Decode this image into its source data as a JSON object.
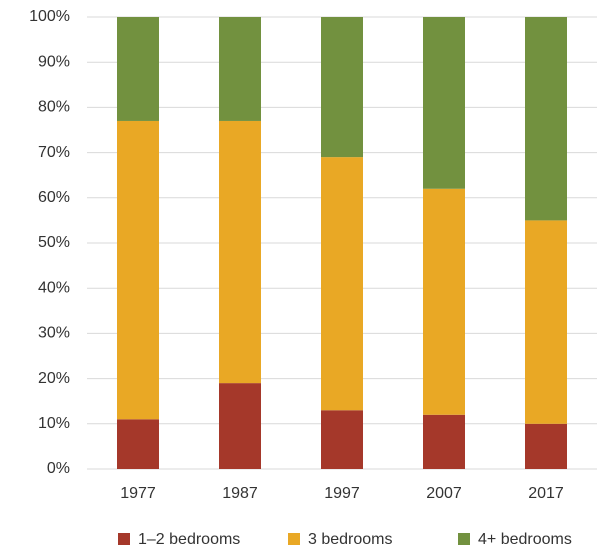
{
  "chart_data": {
    "type": "stacked_bar",
    "categories": [
      "1977",
      "1987",
      "1997",
      "2007",
      "2017"
    ],
    "series": [
      {
        "name": "1–2 bedrooms",
        "color": "#a5382a",
        "values": [
          11,
          19,
          13,
          12,
          10
        ]
      },
      {
        "name": "3 bedrooms",
        "color": "#e9a825",
        "values": [
          66,
          58,
          56,
          50,
          45
        ]
      },
      {
        "name": "4+ bedrooms",
        "color": "#72913f",
        "values": [
          23,
          23,
          31,
          38,
          45
        ]
      }
    ],
    "ylim": [
      0,
      100
    ],
    "yticks": [
      {
        "value": 0,
        "label": "0%"
      },
      {
        "value": 10,
        "label": "10%"
      },
      {
        "value": 20,
        "label": "20%"
      },
      {
        "value": 30,
        "label": "30%"
      },
      {
        "value": 40,
        "label": "40%"
      },
      {
        "value": 50,
        "label": "50%"
      },
      {
        "value": 60,
        "label": "60%"
      },
      {
        "value": 70,
        "label": "70%"
      },
      {
        "value": 80,
        "label": "80%"
      },
      {
        "value": 90,
        "label": "90%"
      },
      {
        "value": 100,
        "label": "100%"
      }
    ],
    "grid": true,
    "legend": "bottom"
  }
}
